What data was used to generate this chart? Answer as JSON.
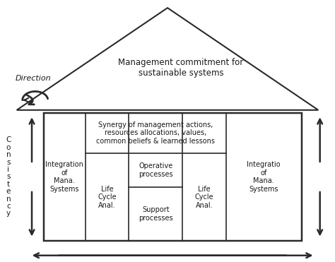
{
  "bg_color": "#ffffff",
  "line_color": "#2a2a2a",
  "text_color": "#1a1a1a",
  "title": "Management commitment for\nsustainable systems",
  "direction_label": "Direction",
  "consistency_label": "C\no\nn\ns\ni\ns\nt\ne\nn\nc\ny",
  "synergy_text": "Synergy of management actions,\nresources allocations, values,\ncommon beliefs & learned lessons",
  "integ_left": "Integration\nof\nMana.\nSystems",
  "integ_right": "Integratio\nof\nMana.\nSystems",
  "life_cycle_left": "Life\nCycle\nAnal.",
  "life_cycle_right": "Life\nCycle\nAnal.",
  "operative": "Operative\nprocesses",
  "support": "Support\nprocesses",
  "figw": 4.74,
  "figh": 3.71,
  "dpi": 100
}
